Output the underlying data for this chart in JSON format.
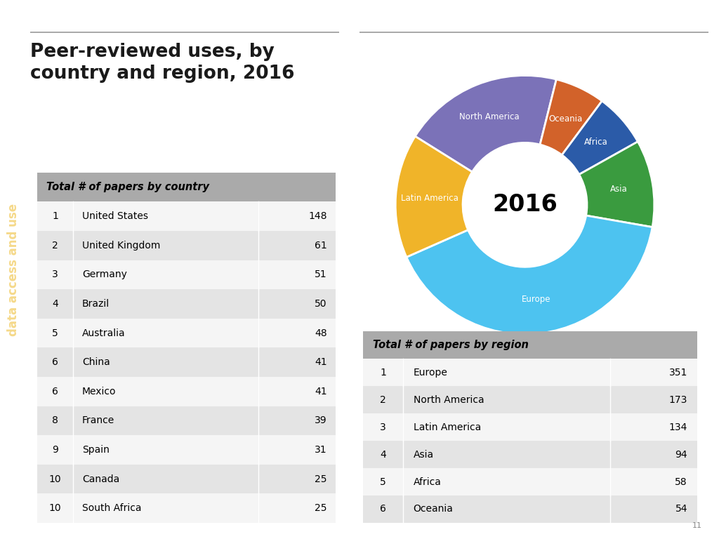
{
  "title_line1": "Peer-reviewed uses, by",
  "title_line2": "country and region, 2016",
  "sidebar_text": "data access and use",
  "country_table_header": "Total # of papers by country",
  "country_data": [
    {
      "rank": "1",
      "country": "United States",
      "value": 148
    },
    {
      "rank": "2",
      "country": "United Kingdom",
      "value": 61
    },
    {
      "rank": "3",
      "country": "Germany",
      "value": 51
    },
    {
      "rank": "4",
      "country": "Brazil",
      "value": 50
    },
    {
      "rank": "5",
      "country": "Australia",
      "value": 48
    },
    {
      "rank": "6",
      "country": "China",
      "value": 41
    },
    {
      "rank": "6",
      "country": "Mexico",
      "value": 41
    },
    {
      "rank": "8",
      "country": "France",
      "value": 39
    },
    {
      "rank": "9",
      "country": "Spain",
      "value": 31
    },
    {
      "rank": "10",
      "country": "Canada",
      "value": 25
    },
    {
      "rank": "10",
      "country": "South Africa",
      "value": 25
    }
  ],
  "region_table_header": "Total # of papers by region",
  "region_data": [
    {
      "rank": "1",
      "region": "Europe",
      "value": 351
    },
    {
      "rank": "2",
      "region": "North America",
      "value": 173
    },
    {
      "rank": "3",
      "region": "Latin America",
      "value": 134
    },
    {
      "rank": "4",
      "region": "Asia",
      "value": 94
    },
    {
      "rank": "5",
      "region": "Africa",
      "value": 58
    },
    {
      "rank": "6",
      "region": "Oceania",
      "value": 54
    }
  ],
  "donut_center_text": "2016",
  "donut_order_labels": [
    "North America",
    "Oceania",
    "Africa",
    "Asia",
    "Europe",
    "Latin America"
  ],
  "donut_order_values": [
    173,
    54,
    58,
    94,
    351,
    134
  ],
  "donut_order_colors": [
    "#7B72B8",
    "#D2622A",
    "#2B5BA8",
    "#3A9B3F",
    "#4DC3F0",
    "#F0B429"
  ],
  "donut_startangle": 148,
  "bg_color": "#ffffff",
  "sidebar_color": "#F5D98A",
  "sidebar_text_color": "#F5D98A",
  "table_header_bg": "#AAAAAA",
  "table_row_even_bg": "#E4E4E4",
  "table_row_odd_bg": "#F5F5F5",
  "line_color": "#999999",
  "title_color": "#1A1A1A",
  "page_num": "11"
}
